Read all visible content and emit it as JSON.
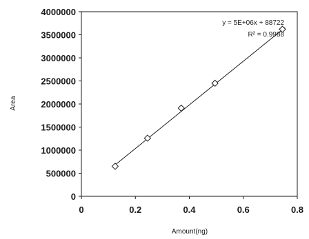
{
  "chart_data": {
    "type": "scatter",
    "title": "",
    "xlabel": "Amount(ng)",
    "ylabel": "Area",
    "xlim": [
      0,
      0.8
    ],
    "ylim": [
      0,
      4000000
    ],
    "x_ticks": [
      "0",
      "0.2",
      "0.4",
      "0.6",
      "0.8"
    ],
    "y_ticks": [
      "0",
      "500000",
      "1000000",
      "1500000",
      "2000000",
      "2500000",
      "3000000",
      "3500000",
      "4000000"
    ],
    "grid": false,
    "marker": "diamond",
    "series": [
      {
        "x": [
          0.125,
          0.245,
          0.37,
          0.495,
          0.745
        ],
        "y": [
          650000,
          1260000,
          1910000,
          2450000,
          3620000
        ]
      }
    ],
    "trendline": {
      "type": "linear",
      "slope": 4730000,
      "intercept": 88722
    },
    "annotations": {
      "equation": "y = 5E+06x + 88722",
      "r_squared": "R² = 0.9988"
    },
    "colors": {
      "axis": "#1a1a1a",
      "marker": "#1a1a1a",
      "trendline": "#1a1a1a"
    }
  }
}
